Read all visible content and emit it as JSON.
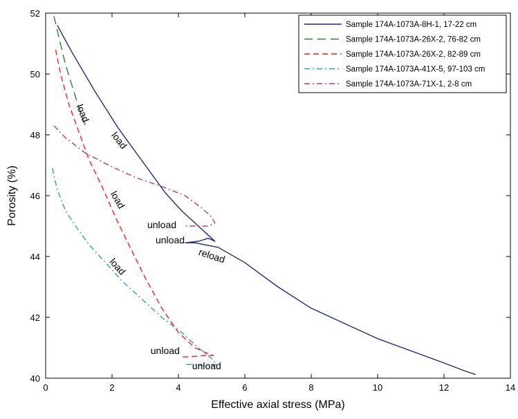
{
  "chart_data": {
    "type": "line",
    "xlabel": "Effective axial stress (MPa)",
    "ylabel": "Porosity (%)",
    "xlim": [
      0,
      14
    ],
    "ylim": [
      40,
      52
    ],
    "xticks": [
      0,
      2,
      4,
      6,
      8,
      10,
      12,
      14
    ],
    "yticks": [
      40,
      42,
      44,
      46,
      48,
      50,
      52
    ],
    "grid": false,
    "legend_position": "top-right",
    "series": [
      {
        "name": "Sample 174A-1073A-8H-1, 17-22 cm",
        "color": "#1f2a7a",
        "dash": "solid",
        "x": [
          0.35,
          0.8,
          1.5,
          2.2,
          3.0,
          3.6,
          4.1,
          4.6,
          4.9,
          5.05,
          5.1,
          5.0,
          4.9,
          4.6,
          4.2,
          4.5,
          5.2,
          6.0,
          7.0,
          8.0,
          9.0,
          10.0,
          11.0,
          12.0,
          12.6,
          12.95
        ],
        "y": [
          51.6,
          50.7,
          49.4,
          48.2,
          47.0,
          46.1,
          45.5,
          45.0,
          44.7,
          44.55,
          44.5,
          44.55,
          44.6,
          44.5,
          44.45,
          44.45,
          44.3,
          43.8,
          43.0,
          42.3,
          41.8,
          41.3,
          40.9,
          40.5,
          40.25,
          40.12
        ]
      },
      {
        "name": "Sample 174A-1073A-26X-2, 76-82 cm",
        "color": "#2e7d32",
        "dash": "long-dash",
        "x": [
          0.25,
          0.4,
          0.6,
          0.8,
          1.0,
          1.2
        ],
        "y": [
          51.9,
          51.2,
          50.3,
          49.6,
          48.9,
          48.3
        ]
      },
      {
        "name": "Sample 174A-1073A-26X-2, 82-89 cm",
        "color": "#ff1a1a",
        "dash": "dash",
        "x": [
          0.3,
          0.45,
          0.7,
          1.0,
          1.3,
          1.7,
          2.1,
          2.5,
          3.0,
          3.5,
          4.0,
          4.5,
          4.9,
          5.05,
          4.8,
          4.3,
          4.1
        ],
        "y": [
          50.8,
          50.0,
          49.0,
          48.1,
          47.2,
          46.3,
          45.3,
          44.4,
          43.3,
          42.3,
          41.5,
          41.0,
          40.8,
          40.75,
          40.75,
          40.7,
          40.7
        ]
      },
      {
        "name": "Sample 174A-1073A-41X-5, 97-103 cm",
        "color": "#2aa3a3",
        "dash": "dash-dot",
        "x": [
          0.2,
          0.35,
          0.6,
          0.9,
          1.3,
          1.8,
          2.3,
          2.9,
          3.5,
          4.1,
          4.6,
          5.0,
          5.15,
          4.9,
          4.4,
          4.2
        ],
        "y": [
          46.9,
          46.2,
          45.5,
          45.0,
          44.4,
          43.8,
          43.2,
          42.6,
          42.0,
          41.5,
          41.0,
          40.65,
          40.45,
          40.4,
          40.45,
          40.45
        ]
      },
      {
        "name": "Sample 174A-1073A-71X-1, 2-8 cm",
        "color": "#b83a6e",
        "dash": "dash-dot",
        "x": [
          0.25,
          0.6,
          1.2,
          1.9,
          2.7,
          3.5,
          4.2,
          4.7,
          5.0,
          5.1,
          4.9,
          4.6,
          4.2
        ],
        "y": [
          48.3,
          47.9,
          47.4,
          47.0,
          46.6,
          46.3,
          46.0,
          45.6,
          45.3,
          45.1,
          45.0,
          45.0,
          45.0
        ]
      }
    ],
    "annotations": [
      {
        "text": "load",
        "x": 1.1,
        "y": 48.7,
        "rotate": 68
      },
      {
        "text": "load",
        "x": 2.2,
        "y": 47.8,
        "rotate": 52
      },
      {
        "text": "load",
        "x": 2.15,
        "y": 45.85,
        "rotate": 60
      },
      {
        "text": "load",
        "x": 2.15,
        "y": 43.65,
        "rotate": 48
      },
      {
        "text": "unload",
        "x": 3.5,
        "y": 45.02,
        "rotate": 0
      },
      {
        "text": "unload",
        "x": 3.75,
        "y": 44.52,
        "rotate": 0
      },
      {
        "text": "reload",
        "x": 5.0,
        "y": 44.0,
        "rotate": 18
      },
      {
        "text": "unload",
        "x": 3.6,
        "y": 40.88,
        "rotate": 0
      },
      {
        "text": "unload",
        "x": 4.85,
        "y": 40.38,
        "rotate": 0
      }
    ]
  }
}
